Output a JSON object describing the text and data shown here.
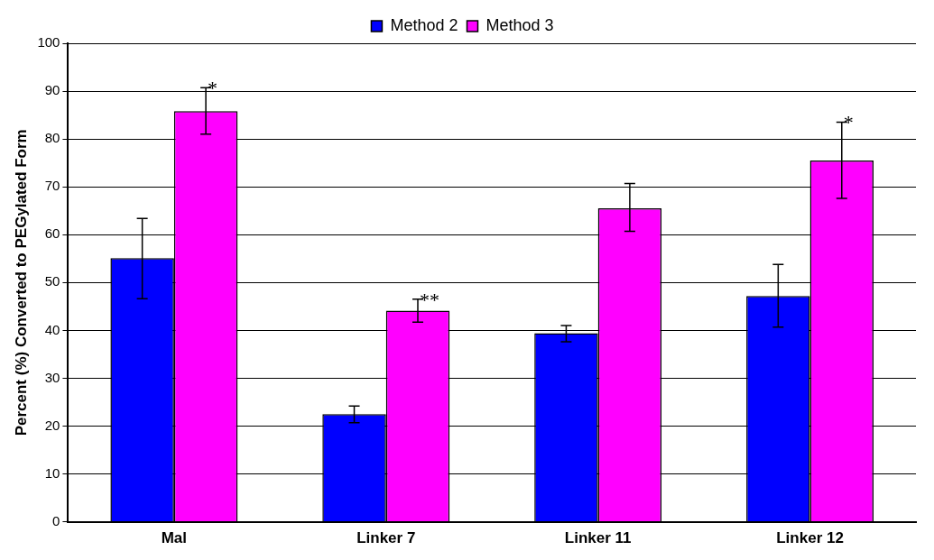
{
  "chart_data": {
    "type": "bar",
    "ylabel": "Percent (%) Converted to PEGylated Form",
    "categories": [
      "Mal",
      "Linker 7",
      "Linker 11",
      "Linker 12"
    ],
    "series": [
      {
        "name": "Method 2",
        "color": "#0000ff",
        "values": [
          55.1,
          22.5,
          39.4,
          47.2
        ],
        "errors": [
          [
            46.6,
            63.4
          ],
          [
            20.7,
            24.2
          ],
          [
            37.6,
            41.0
          ],
          [
            40.7,
            53.8
          ]
        ]
      },
      {
        "name": "Method 3",
        "color": "#ff00ff",
        "values": [
          85.8,
          44.1,
          65.5,
          75.5
        ],
        "errors": [
          [
            81.0,
            90.7
          ],
          [
            41.7,
            46.5
          ],
          [
            60.7,
            70.7
          ],
          [
            67.6,
            83.5
          ]
        ]
      }
    ],
    "annotations": [
      {
        "text": "*",
        "x": "Mal",
        "y": 85.8
      },
      {
        "text": "**",
        "x": "Linker 7",
        "y": 44.1
      },
      {
        "text": "*",
        "x": "Linker 12",
        "y": 75.5
      }
    ],
    "ylim": [
      0,
      100
    ],
    "yticks": [
      0,
      10,
      20,
      30,
      40,
      50,
      60,
      70,
      80,
      90,
      100
    ],
    "grid": "y",
    "legend": "top"
  }
}
